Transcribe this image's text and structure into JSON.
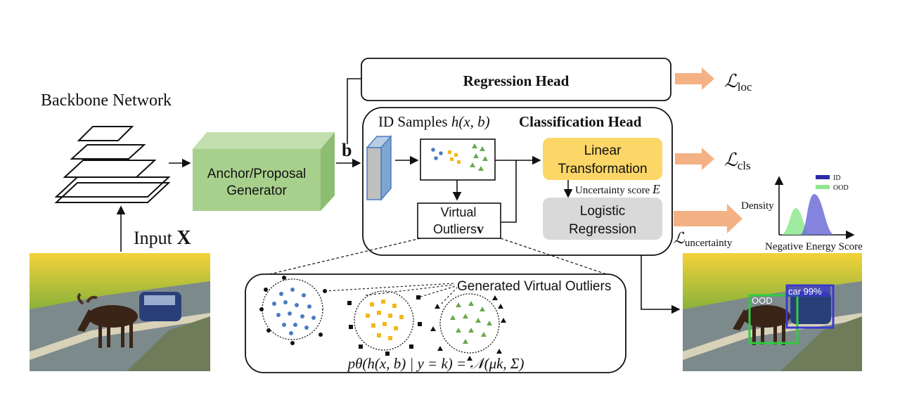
{
  "labels": {
    "backbone": "Backbone Network",
    "input_prefix": "Input ",
    "input_var": "X",
    "anchor_line1": "Anchor/Proposal",
    "anchor_line2": "Generator",
    "b_symbol": "b",
    "regression_head": "Regression Head",
    "id_samples_prefix": "ID Samples ",
    "id_samples_expr": "h(x, b)",
    "classification_head": "Classification Head",
    "linear_line1": "Linear",
    "linear_line2": "Transformation",
    "uncertainty_score": "Uncertainty score ",
    "uncertainty_symbol": "E",
    "logistic_line1": "Logistic",
    "logistic_line2": "Regression",
    "virtual_line1": "Virtual",
    "virtual_line2": "Outliers",
    "virtual_symbol": "v",
    "generated_outliers": "Generated Virtual Outliers",
    "formula": "pθ(h(x, b) | y = k) = 𝒩(μk, Σ)"
  },
  "losses": {
    "loc": {
      "symbol": "ℒ",
      "sub": "loc"
    },
    "cls": {
      "symbol": "ℒ",
      "sub": "cls"
    },
    "uncertainty": {
      "symbol": "ℒ",
      "sub": "uncertainty"
    }
  },
  "density_chart": {
    "ylabel": "Density",
    "xlabel": "Negative Energy Score",
    "legend": [
      {
        "name": "ID",
        "color": "#2b2ba8"
      },
      {
        "name": "OOD",
        "color": "#8ee88e"
      }
    ]
  },
  "detection": {
    "ood_label": "OOD",
    "car_label": "car 99%",
    "ood_color": "#2ecc40",
    "car_color": "#3a3acc"
  },
  "colors": {
    "blue_points": "#4a7cc4",
    "yellow_points": "#f2b81c",
    "green_points": "#6aa84f",
    "anchor_box": "#a8d08d",
    "linear_box": "#fcd667",
    "logistic_box": "#d9d9d9",
    "arrow_orange": "#f4b183"
  }
}
